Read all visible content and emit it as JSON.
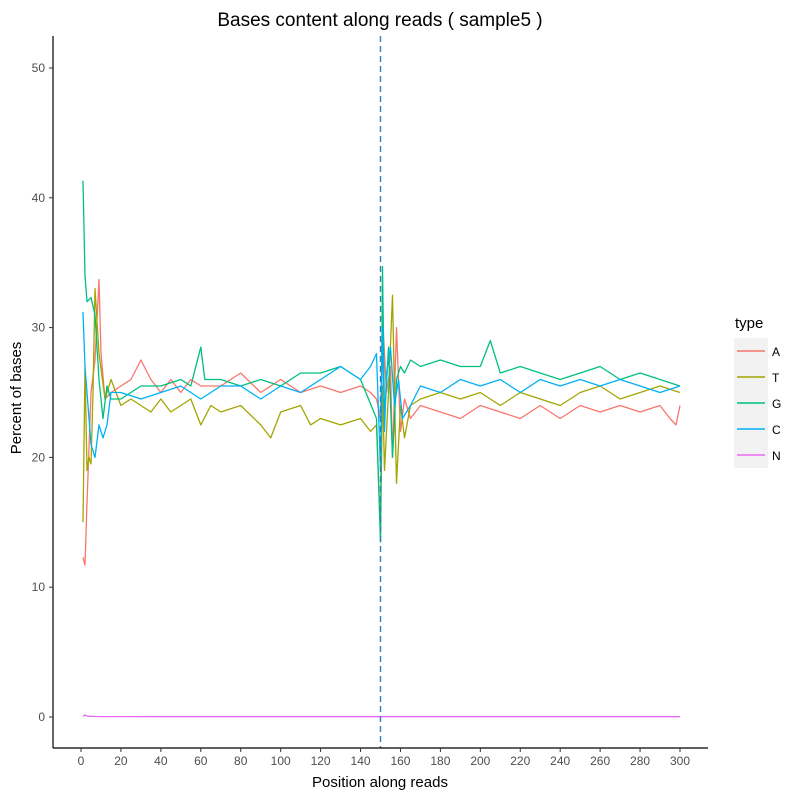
{
  "chart_data": {
    "type": "line",
    "title": "Bases content along reads ( sample5 )",
    "xlabel": "Position along reads",
    "ylabel": "Percent of bases",
    "xlim": [
      0,
      300
    ],
    "ylim": [
      0,
      50
    ],
    "xticks": [
      0,
      20,
      40,
      60,
      80,
      100,
      120,
      140,
      160,
      180,
      200,
      220,
      240,
      260,
      280,
      300
    ],
    "yticks": [
      0,
      10,
      20,
      30,
      40,
      50
    ],
    "grid": false,
    "legend": {
      "title": "type",
      "position": "right"
    },
    "vline": {
      "x": 150,
      "style": "dashed",
      "color": "#2c7fb8"
    },
    "series": [
      {
        "name": "A",
        "color": "#F8766D",
        "x": [
          1,
          2,
          3,
          5,
          7,
          9,
          10,
          12,
          15,
          20,
          25,
          30,
          35,
          40,
          45,
          50,
          55,
          60,
          70,
          80,
          90,
          100,
          110,
          120,
          130,
          140,
          145,
          148,
          150,
          151,
          153,
          155,
          156,
          158,
          160,
          162,
          165,
          170,
          180,
          190,
          200,
          210,
          220,
          230,
          240,
          250,
          260,
          270,
          280,
          290,
          295,
          298,
          300
        ],
        "y": [
          12.3,
          11.7,
          16.5,
          25.0,
          27.5,
          33.7,
          28.0,
          24.5,
          25.0,
          25.5,
          26.0,
          27.5,
          26.0,
          25.0,
          26.0,
          25.0,
          26.0,
          25.5,
          25.5,
          26.5,
          25.0,
          26.0,
          25.0,
          25.5,
          25.0,
          25.5,
          25.0,
          24.5,
          23.0,
          31.0,
          25.0,
          27.0,
          20.0,
          30.0,
          22.0,
          24.5,
          23.0,
          24.0,
          23.5,
          23.0,
          24.0,
          23.5,
          23.0,
          24.0,
          23.0,
          24.0,
          23.5,
          24.0,
          23.5,
          24.0,
          23.0,
          22.5,
          24.0
        ]
      },
      {
        "name": "T",
        "color": "#A3A500",
        "x": [
          1,
          2,
          3,
          4,
          5,
          6,
          7,
          9,
          12,
          15,
          20,
          25,
          30,
          35,
          40,
          45,
          50,
          55,
          60,
          65,
          70,
          80,
          90,
          95,
          100,
          110,
          115,
          120,
          130,
          140,
          145,
          148,
          150,
          151,
          152,
          154,
          156,
          157,
          158,
          160,
          162,
          165,
          170,
          180,
          190,
          200,
          210,
          220,
          230,
          240,
          250,
          260,
          270,
          280,
          290,
          300
        ],
        "y": [
          15.0,
          27.0,
          19.0,
          20.0,
          19.5,
          25.0,
          33.0,
          28.0,
          24.5,
          26.0,
          24.0,
          24.5,
          24.0,
          23.5,
          24.5,
          23.5,
          24.0,
          24.5,
          22.5,
          24.0,
          23.5,
          24.0,
          22.5,
          21.5,
          23.5,
          24.0,
          22.5,
          23.0,
          22.5,
          23.0,
          22.0,
          22.5,
          14.0,
          25.5,
          19.0,
          25.0,
          32.5,
          25.0,
          18.0,
          24.0,
          21.5,
          24.0,
          24.5,
          25.0,
          24.5,
          25.0,
          24.0,
          25.0,
          24.5,
          24.0,
          25.0,
          25.5,
          24.5,
          25.0,
          25.5,
          25.0
        ]
      },
      {
        "name": "G",
        "color": "#00BF7D",
        "x": [
          1,
          2,
          3,
          5,
          7,
          9,
          11,
          13,
          15,
          20,
          25,
          30,
          40,
          50,
          55,
          60,
          62,
          70,
          80,
          90,
          100,
          110,
          120,
          130,
          140,
          148,
          150,
          151,
          152,
          154,
          156,
          158,
          160,
          162,
          165,
          170,
          180,
          190,
          200,
          205,
          210,
          220,
          230,
          240,
          250,
          260,
          270,
          280,
          290,
          300
        ],
        "y": [
          41.3,
          34.0,
          32.0,
          32.3,
          31.0,
          26.0,
          23.0,
          25.5,
          24.5,
          24.5,
          25.0,
          25.5,
          25.5,
          26.0,
          25.5,
          28.5,
          26.0,
          26.0,
          25.5,
          26.0,
          25.5,
          26.5,
          26.5,
          27.0,
          26.0,
          23.0,
          13.5,
          34.7,
          23.0,
          28.5,
          20.0,
          26.0,
          27.0,
          26.5,
          27.5,
          27.0,
          27.5,
          27.0,
          27.0,
          29.0,
          26.5,
          27.0,
          26.5,
          26.0,
          26.5,
          27.0,
          26.0,
          26.5,
          26.0,
          25.5
        ]
      },
      {
        "name": "C",
        "color": "#00B0F6",
        "x": [
          1,
          2,
          3,
          5,
          7,
          9,
          11,
          13,
          15,
          20,
          30,
          40,
          50,
          60,
          70,
          80,
          90,
          100,
          110,
          120,
          130,
          140,
          145,
          148,
          150,
          151,
          152,
          153,
          155,
          157,
          159,
          161,
          165,
          170,
          180,
          190,
          200,
          210,
          220,
          230,
          240,
          250,
          260,
          270,
          280,
          290,
          300
        ],
        "y": [
          31.2,
          27.0,
          25.0,
          21.0,
          20.0,
          22.5,
          21.5,
          22.5,
          25.0,
          25.0,
          24.5,
          25.0,
          25.5,
          24.5,
          25.5,
          25.5,
          24.5,
          25.5,
          25.0,
          26.0,
          27.0,
          26.0,
          27.0,
          28.0,
          19.0,
          30.0,
          22.0,
          26.5,
          28.5,
          24.0,
          26.0,
          23.0,
          24.0,
          25.5,
          25.0,
          26.0,
          25.5,
          26.0,
          25.0,
          26.0,
          25.5,
          26.0,
          25.5,
          26.0,
          25.5,
          25.0,
          25.5
        ]
      },
      {
        "name": "N",
        "color": "#E76BF3",
        "x": [
          1,
          2,
          3,
          5,
          10,
          50,
          100,
          150,
          200,
          250,
          300
        ],
        "y": [
          0.05,
          0.15,
          0.08,
          0.05,
          0.03,
          0.02,
          0.02,
          0.02,
          0.02,
          0.02,
          0.02
        ]
      }
    ]
  }
}
